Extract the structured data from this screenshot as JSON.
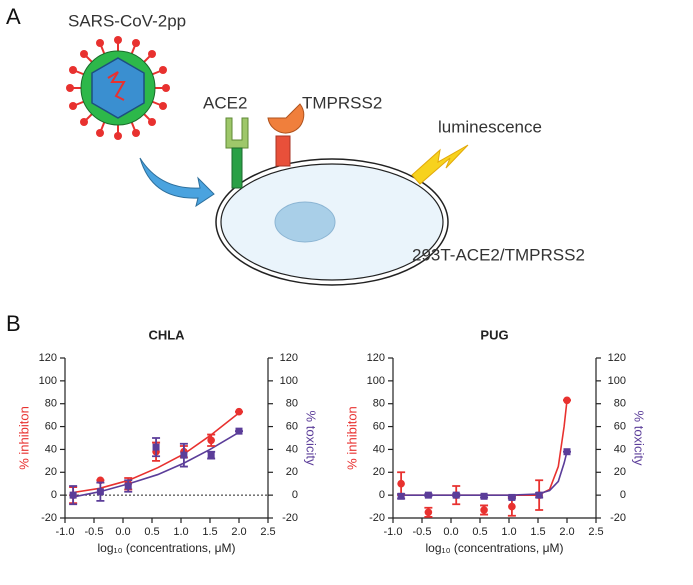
{
  "panel_labels": [
    "A",
    "B"
  ],
  "diagram": {
    "virus_label": "SARS-CoV-2pp",
    "receptor_label": "ACE2",
    "protease_label": "TMPRSS2",
    "signal_label": "luminescence",
    "cell_label": "293T-ACE2/TMPRSS2"
  },
  "chart_data": [
    {
      "type": "scatter",
      "title": "CHLA",
      "xlabel": "log₁₀ (concentrations, μM)",
      "ylabel": "% inhibiton",
      "y2label": "% toxicity",
      "ylabel_color": "#e8312f",
      "y2label_color": "#5b3d99",
      "x": [
        -0.86,
        -0.39,
        0.09,
        0.57,
        1.05,
        1.52,
        2.0
      ],
      "series": [
        {
          "color": "#e8312f",
          "marker": "circle",
          "values": [
            0,
            13,
            10,
            38,
            38,
            48,
            73
          ],
          "errors": [
            7,
            0,
            5,
            8,
            5,
            5,
            0
          ]
        },
        {
          "color": "#5b3d99",
          "marker": "square",
          "axis": "y2",
          "values": [
            0,
            3,
            8,
            42,
            35,
            35,
            56
          ],
          "errors": [
            8,
            8,
            5,
            8,
            10,
            3,
            0
          ]
        }
      ],
      "fits": [
        {
          "color": "#e8312f",
          "x": [
            -0.9,
            -0.4,
            0.1,
            0.6,
            1.05,
            1.5,
            2.0
          ],
          "values": [
            2,
            6,
            13,
            24,
            36,
            52,
            72
          ]
        },
        {
          "color": "#5b3d99",
          "x": [
            -0.9,
            -0.4,
            0.1,
            0.6,
            1.05,
            1.5,
            2.0
          ],
          "values": [
            -2,
            3,
            10,
            18,
            28,
            40,
            55
          ]
        }
      ],
      "hline": 0,
      "xlim": [
        -1.0,
        2.5
      ],
      "ylim": [
        -20,
        120
      ],
      "y2lim": [
        -20,
        120
      ],
      "xticks": [
        {
          "value": -1.0,
          "label": "-1.0"
        },
        {
          "value": -0.5,
          "label": "-0.5"
        },
        {
          "value": 0,
          "label": "0.0"
        },
        {
          "value": 0.5,
          "label": "0.5"
        },
        {
          "value": 1.0,
          "label": "1.0"
        },
        {
          "value": 1.5,
          "label": "1.5"
        },
        {
          "value": 2.0,
          "label": "2.0"
        },
        {
          "value": 2.5,
          "label": "2.5"
        }
      ],
      "yticks": [
        -20,
        0,
        20,
        40,
        60,
        80,
        100,
        120
      ],
      "y2ticks": [
        -20,
        0,
        20,
        40,
        60,
        80,
        100,
        120
      ]
    },
    {
      "type": "scatter",
      "title": "PUG",
      "xlabel": "log₁₀ (concentrations, μM)",
      "ylabel": "% inhibiton",
      "y2label": "% toxicity",
      "ylabel_color": "#e8312f",
      "y2label_color": "#5b3d99",
      "x": [
        -0.86,
        -0.39,
        0.09,
        0.57,
        1.05,
        1.52,
        2.0
      ],
      "series": [
        {
          "color": "#e8312f",
          "marker": "circle",
          "values": [
            10,
            -15,
            0,
            -13,
            -10,
            0,
            83
          ],
          "errors": [
            10,
            4,
            8,
            4,
            8,
            13,
            0
          ]
        },
        {
          "color": "#5b3d99",
          "marker": "square",
          "axis": "y2",
          "values": [
            -1,
            0,
            0,
            -1,
            -2,
            0,
            38
          ],
          "errors": [
            2,
            1,
            1,
            1,
            1,
            2,
            0
          ]
        }
      ],
      "fits": [
        {
          "color": "#e8312f",
          "x": [
            -0.9,
            0,
            1.0,
            1.5,
            1.7,
            1.85,
            1.95,
            2.0
          ],
          "values": [
            0,
            0,
            0,
            0,
            5,
            25,
            60,
            83
          ]
        },
        {
          "color": "#5b3d99",
          "x": [
            -0.9,
            0,
            1.0,
            1.5,
            1.7,
            1.85,
            1.95,
            2.0
          ],
          "values": [
            0,
            0,
            0,
            1,
            4,
            12,
            28,
            38
          ]
        }
      ],
      "xlim": [
        -1.0,
        2.5
      ],
      "ylim": [
        -20,
        120
      ],
      "y2lim": [
        -20,
        120
      ],
      "xticks": [
        {
          "value": -1.0,
          "label": "-1.0"
        },
        {
          "value": -0.5,
          "label": "-0.5"
        },
        {
          "value": 0,
          "label": "0.0"
        },
        {
          "value": 0.5,
          "label": "0.5"
        },
        {
          "value": 1.0,
          "label": "1.0"
        },
        {
          "value": 1.5,
          "label": "1.5"
        },
        {
          "value": 2.0,
          "label": "2.0"
        },
        {
          "value": 2.5,
          "label": "2.5"
        }
      ],
      "yticks": [
        -20,
        0,
        20,
        40,
        60,
        80,
        100,
        120
      ],
      "y2ticks": [
        -20,
        0,
        20,
        40,
        60,
        80,
        100,
        120
      ]
    }
  ]
}
